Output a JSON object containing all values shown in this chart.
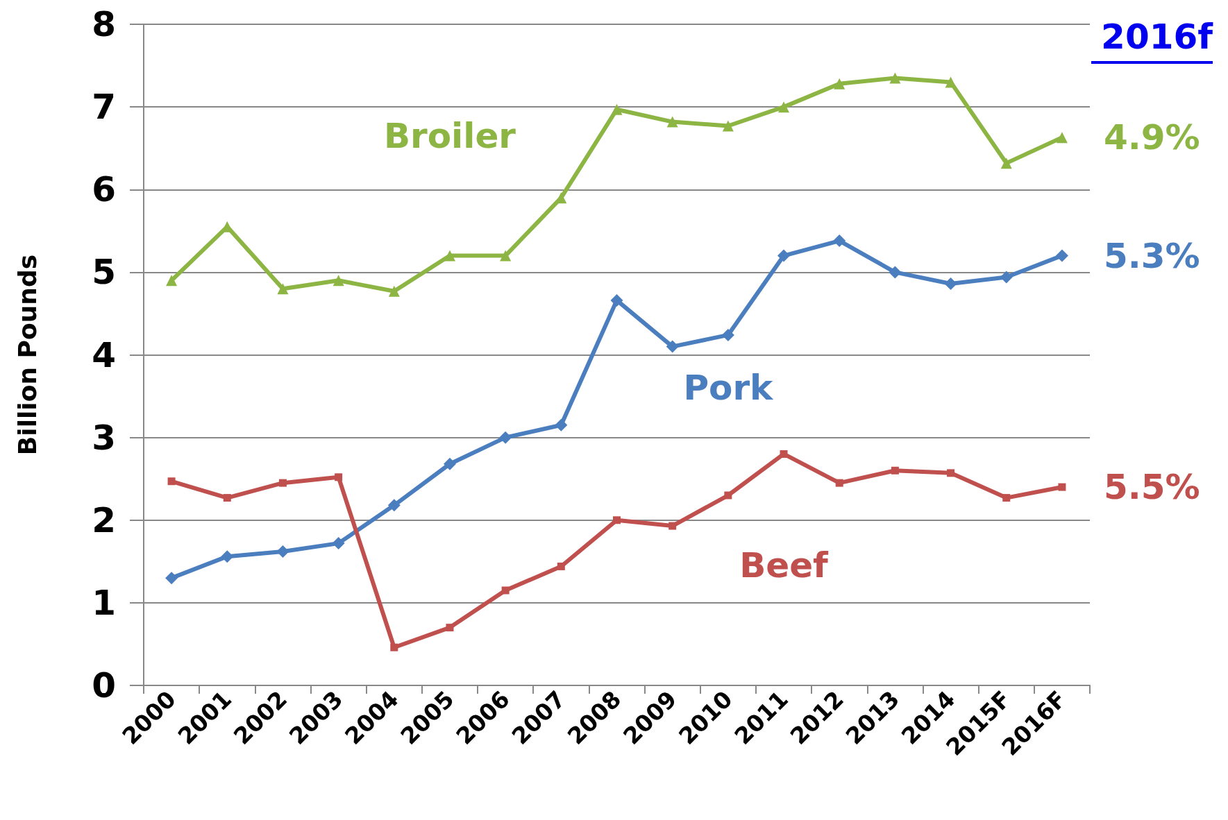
{
  "chart_data": {
    "type": "line",
    "ylabel": "Billion Pounds",
    "categories": [
      "2000",
      "2001",
      "2002",
      "2003",
      "2004",
      "2005",
      "2006",
      "2007",
      "2008",
      "2009",
      "2010",
      "2011",
      "2012",
      "2013",
      "2014",
      "2015F",
      "2016F"
    ],
    "series": [
      {
        "name": "Broiler",
        "color": "#8db544",
        "marker": "triangle",
        "values": [
          4.9,
          5.55,
          4.8,
          4.9,
          4.77,
          5.2,
          5.2,
          5.9,
          6.97,
          6.82,
          6.77,
          7.0,
          7.28,
          7.35,
          7.3,
          6.32,
          6.63
        ]
      },
      {
        "name": "Pork",
        "color": "#4a7ebf",
        "marker": "diamond",
        "values": [
          1.3,
          1.56,
          1.62,
          1.72,
          2.18,
          2.68,
          3.0,
          3.15,
          4.66,
          4.1,
          4.24,
          5.2,
          5.38,
          5.0,
          4.86,
          4.94,
          5.2
        ]
      },
      {
        "name": "Beef",
        "color": "#c0504d",
        "marker": "square",
        "values": [
          2.47,
          2.27,
          2.45,
          2.52,
          0.46,
          0.7,
          1.15,
          1.44,
          2.0,
          1.93,
          2.3,
          2.8,
          2.45,
          2.6,
          2.57,
          2.27,
          2.4
        ]
      }
    ],
    "annotations": [
      "2016f",
      {
        "text": "4.9%",
        "x": "2016F",
        "y": 6.63
      },
      {
        "text": "5.3%",
        "x": "2016F",
        "y": 5.2
      },
      {
        "text": "5.5%",
        "x": "2016F",
        "y": 2.4
      }
    ],
    "ylim": [
      0,
      8
    ],
    "yticks": [
      0,
      1,
      2,
      3,
      4,
      5,
      6,
      7,
      8
    ],
    "grid": "y",
    "legend": false,
    "line_style": "solid"
  }
}
